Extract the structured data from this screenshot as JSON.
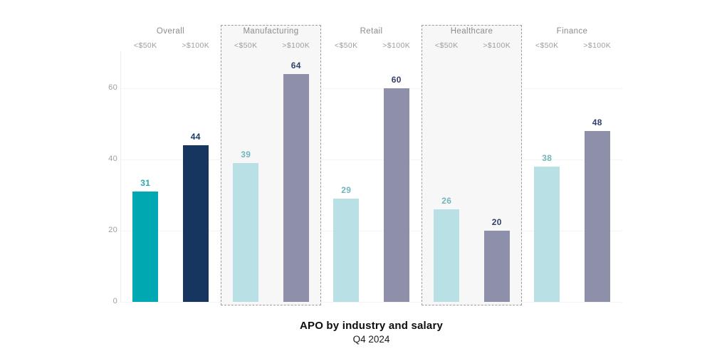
{
  "chart_data": {
    "type": "bar",
    "title": "APO by industry and salary",
    "subtitle": "Q4 2024",
    "categories": [
      "Overall",
      "Manufacturing",
      "Retail",
      "Healthcare",
      "Finance"
    ],
    "series": [
      {
        "name": "<$50K",
        "values": [
          31,
          39,
          29,
          26,
          38
        ]
      },
      {
        "name": ">$100K",
        "values": [
          44,
          64,
          60,
          20,
          48
        ]
      }
    ],
    "highlighted_categories": [
      "Manufacturing",
      "Healthcare"
    ],
    "ylim": [
      0,
      70
    ],
    "yticks": [
      0,
      20,
      40,
      60
    ],
    "grid": true,
    "legend_position": "column-headers-per-group",
    "groups": [
      {
        "label": "Overall",
        "highlight": false,
        "bars": [
          {
            "series": "<$50K",
            "value": 31,
            "color": "#00a9b1",
            "value_color": "#2aa8b0"
          },
          {
            "series": ">$100K",
            "value": 44,
            "color": "#17365f",
            "value_color": "#1c3a66"
          }
        ]
      },
      {
        "label": "Manufacturing",
        "highlight": true,
        "bars": [
          {
            "series": "<$50K",
            "value": 39,
            "color": "#b9e1e5",
            "value_color": "#72b5bd"
          },
          {
            "series": ">$100K",
            "value": 64,
            "color": "#8e8fa9",
            "value_color": "#343f69"
          }
        ]
      },
      {
        "label": "Retail",
        "highlight": false,
        "bars": [
          {
            "series": "<$50K",
            "value": 29,
            "color": "#b9e1e5",
            "value_color": "#72b5bd"
          },
          {
            "series": ">$100K",
            "value": 60,
            "color": "#8e8fa9",
            "value_color": "#343f69"
          }
        ]
      },
      {
        "label": "Healthcare",
        "highlight": true,
        "bars": [
          {
            "series": "<$50K",
            "value": 26,
            "color": "#b9e1e5",
            "value_color": "#72b5bd"
          },
          {
            "series": ">$100K",
            "value": 20,
            "color": "#8e8fa9",
            "value_color": "#343f69"
          }
        ]
      },
      {
        "label": "Finance",
        "highlight": false,
        "bars": [
          {
            "series": "<$50K",
            "value": 38,
            "color": "#b9e1e5",
            "value_color": "#72b5bd"
          },
          {
            "series": ">$100K",
            "value": 48,
            "color": "#8e8fa9",
            "value_color": "#343f69"
          }
        ]
      }
    ],
    "colors": {
      "overall_low": "#00a9b1",
      "overall_high": "#17365f",
      "industry_low": "#b9e1e5",
      "industry_high": "#8e8fa9",
      "axis_label": "#9e9e9e",
      "group_label": "#8c8c8c",
      "gridline": "#f4f4f4",
      "highlight_box_border": "#9c9c9c",
      "highlight_box_background": "#f7f7f7"
    }
  }
}
